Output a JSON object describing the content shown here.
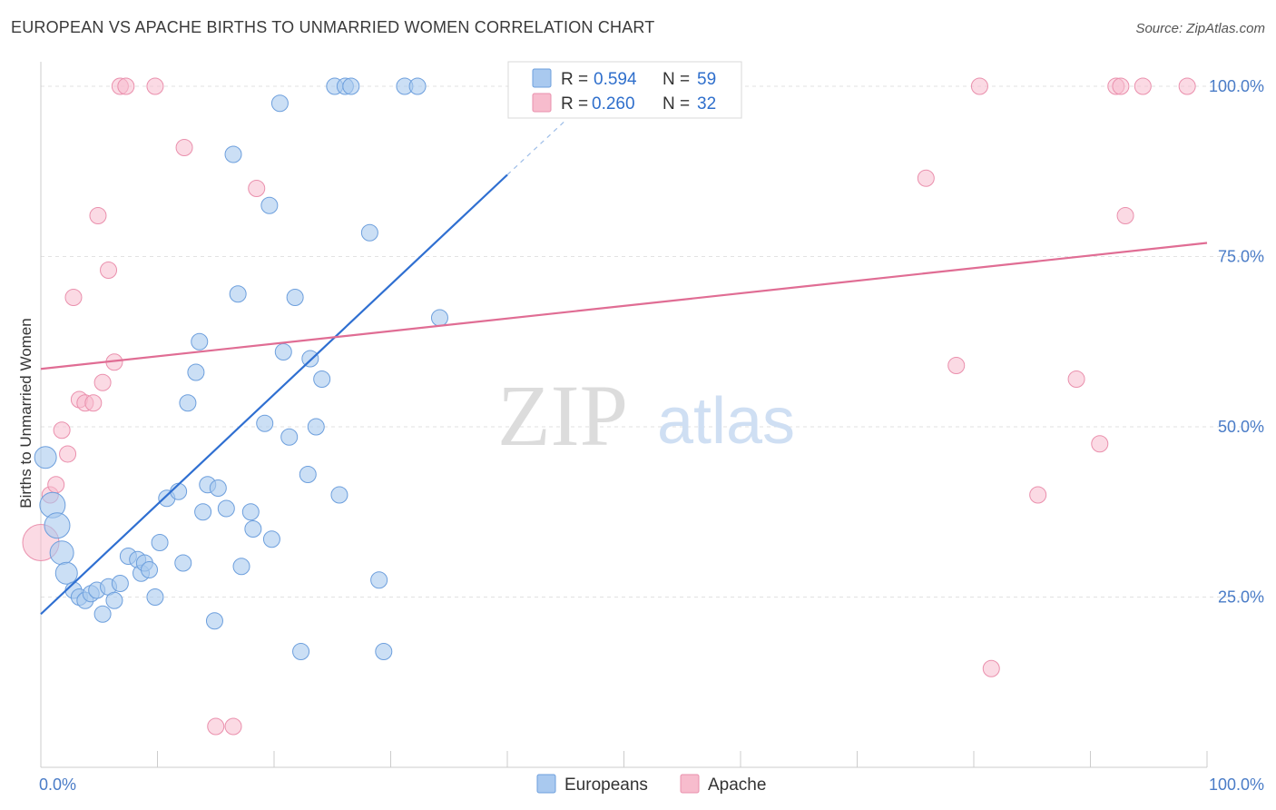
{
  "title": "EUROPEAN VS APACHE BIRTHS TO UNMARRIED WOMEN CORRELATION CHART",
  "source": "Source: ZipAtlas.com",
  "watermark": {
    "zip": "ZIP",
    "atlas": "atlas"
  },
  "colors": {
    "europeans_fill": "#a9c9ef",
    "europeans_stroke": "#6d9fdd",
    "europeans_line": "#2f6fd1",
    "apache_fill": "#f7bccd",
    "apache_stroke": "#ea90ad",
    "apache_line": "#e06d94",
    "tick_text": "#4a7cc7"
  },
  "chart_data": {
    "type": "scatter",
    "title": "EUROPEAN VS APACHE BIRTHS TO UNMARRIED WOMEN CORRELATION CHART",
    "xlabel": "",
    "ylabel": "Births to Unmarried Women",
    "xlim": [
      0,
      100
    ],
    "ylim": [
      0,
      102
    ],
    "x_tick_labels": [
      "0.0%",
      "100.0%"
    ],
    "y_ticks": [
      25,
      50,
      75,
      100
    ],
    "y_tick_labels": [
      "25.0%",
      "50.0%",
      "75.0%",
      "100.0%"
    ],
    "legend": {
      "europeans": {
        "r_label": "R =",
        "r_value": "0.594",
        "n_label": "N =",
        "n_value": "59"
      },
      "apache": {
        "r_label": "R =",
        "r_value": "0.260",
        "n_label": "N =",
        "n_value": "32"
      }
    },
    "series": [
      {
        "name": "Europeans",
        "trend": {
          "x0": 0,
          "y0": 22.5,
          "x1": 40,
          "y1": 87,
          "dash_to_x": 45,
          "dash_to_y": 95
        },
        "points": [
          [
            0.4,
            45.5,
            12
          ],
          [
            1,
            38.5,
            14
          ],
          [
            1.4,
            35.5,
            14
          ],
          [
            1.8,
            31.5,
            13
          ],
          [
            2.2,
            28.5,
            12
          ],
          [
            2.8,
            26,
            9
          ],
          [
            3.3,
            25,
            9
          ],
          [
            3.8,
            24.5,
            9
          ],
          [
            4.3,
            25.5,
            9
          ],
          [
            4.8,
            26,
            9
          ],
          [
            5.3,
            22.5,
            9
          ],
          [
            5.8,
            26.5,
            9
          ],
          [
            6.3,
            24.5,
            9
          ],
          [
            6.8,
            27,
            9
          ],
          [
            7.5,
            31,
            9
          ],
          [
            8.3,
            30.5,
            9
          ],
          [
            8.6,
            28.5,
            9
          ],
          [
            8.9,
            30,
            9
          ],
          [
            9.3,
            29,
            9
          ],
          [
            9.8,
            25,
            9
          ],
          [
            10.2,
            33,
            9
          ],
          [
            10.8,
            39.5,
            9
          ],
          [
            11.8,
            40.5,
            9
          ],
          [
            12.2,
            30,
            9
          ],
          [
            12.6,
            53.5,
            9
          ],
          [
            13.3,
            58,
            9
          ],
          [
            13.6,
            62.5,
            9
          ],
          [
            13.9,
            37.5,
            9
          ],
          [
            14.3,
            41.5,
            9
          ],
          [
            15.2,
            41,
            9
          ],
          [
            14.9,
            21.5,
            9
          ],
          [
            15.9,
            38,
            9
          ],
          [
            16.5,
            90,
            9
          ],
          [
            16.9,
            69.5,
            9
          ],
          [
            17.2,
            29.5,
            9
          ],
          [
            18,
            37.5,
            9
          ],
          [
            18.2,
            35,
            9
          ],
          [
            19.2,
            50.5,
            9
          ],
          [
            19.6,
            82.5,
            9
          ],
          [
            19.8,
            33.5,
            9
          ],
          [
            20.5,
            97.5,
            9
          ],
          [
            20.8,
            61,
            9
          ],
          [
            21.3,
            48.5,
            9
          ],
          [
            21.8,
            69,
            9
          ],
          [
            22.3,
            17,
            9
          ],
          [
            22.9,
            43,
            9
          ],
          [
            23.1,
            60,
            9
          ],
          [
            23.6,
            50,
            9
          ],
          [
            24.1,
            57,
            9
          ],
          [
            25.2,
            100,
            9
          ],
          [
            25.6,
            40,
            9
          ],
          [
            26.1,
            100,
            9
          ],
          [
            26.6,
            100,
            9
          ],
          [
            28.2,
            78.5,
            9
          ],
          [
            29,
            27.5,
            9
          ],
          [
            29.4,
            17,
            9
          ],
          [
            31.2,
            100,
            9
          ],
          [
            32.3,
            100,
            9
          ],
          [
            34.2,
            66,
            9
          ]
        ]
      },
      {
        "name": "Apache",
        "trend": {
          "x0": 0,
          "y0": 58.5,
          "x1": 100,
          "y1": 77
        },
        "points": [
          [
            0,
            33,
            20
          ],
          [
            0.8,
            40,
            9
          ],
          [
            1.3,
            41.5,
            9
          ],
          [
            1.8,
            49.5,
            9
          ],
          [
            2.3,
            46,
            9
          ],
          [
            2.8,
            69,
            9
          ],
          [
            3.3,
            54,
            9
          ],
          [
            3.8,
            53.5,
            9
          ],
          [
            4.5,
            53.5,
            9
          ],
          [
            4.9,
            81,
            9
          ],
          [
            5.3,
            56.5,
            9
          ],
          [
            5.8,
            73,
            9
          ],
          [
            6.3,
            59.5,
            9
          ],
          [
            6.8,
            100,
            9
          ],
          [
            7.3,
            100,
            9
          ],
          [
            9.8,
            100,
            9
          ],
          [
            12.3,
            91,
            9
          ],
          [
            15,
            6,
            9
          ],
          [
            16.5,
            6,
            9
          ],
          [
            18.5,
            85,
            9
          ],
          [
            75.9,
            86.5,
            9
          ],
          [
            78.5,
            59,
            9
          ],
          [
            80.5,
            100,
            9
          ],
          [
            81.5,
            14.5,
            9
          ],
          [
            85.5,
            40,
            9
          ],
          [
            88.8,
            57,
            9
          ],
          [
            90.8,
            47.5,
            9
          ],
          [
            92.2,
            100,
            9
          ],
          [
            92.6,
            100,
            9
          ],
          [
            93,
            81,
            9
          ],
          [
            94.5,
            100,
            9
          ],
          [
            98.3,
            100,
            9
          ]
        ]
      }
    ],
    "bottom_legend": [
      "Europeans",
      "Apache"
    ]
  }
}
